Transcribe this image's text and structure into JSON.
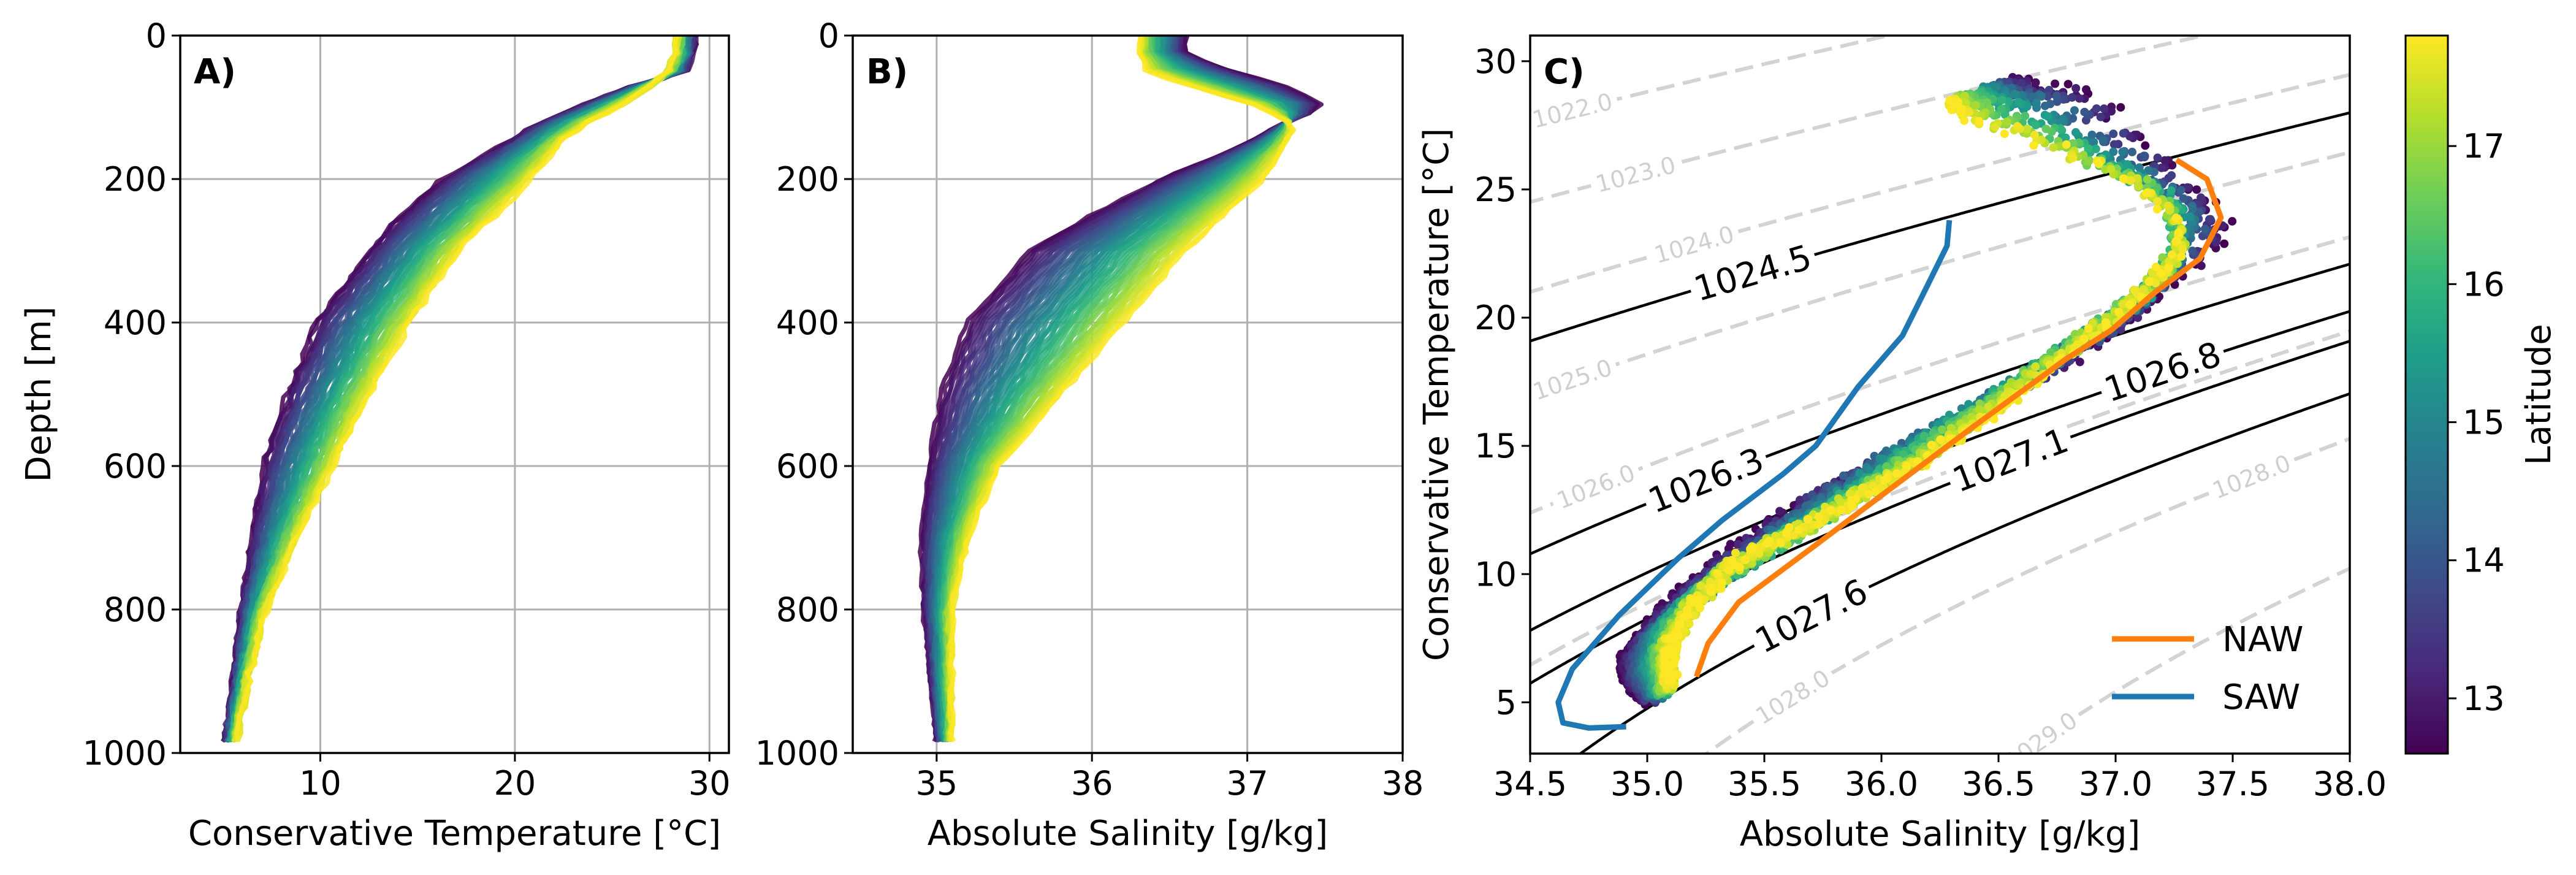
{
  "colors": {
    "viridis": [
      "#440154",
      "#482878",
      "#3e4989",
      "#31688e",
      "#26828e",
      "#1f9e89",
      "#35b779",
      "#6ece58",
      "#b5de2b",
      "#fde725"
    ],
    "NAW": "#ff7f0e",
    "SAW": "#1f77b4",
    "grid": "#b0b0b0",
    "isopycnal_major": "#000000",
    "isopycnal_minor": "#d3d3d3"
  },
  "chart_data": [
    {
      "panel_label": "A)",
      "type": "line",
      "xlabel": "Conservative Temperature [°C]",
      "ylabel": "Depth [m]",
      "xlim": [
        2.8,
        31
      ],
      "ylim": [
        1000,
        0
      ],
      "xticks": [
        "10",
        "20",
        "30"
      ],
      "yticks": [
        "0",
        "200",
        "400",
        "600",
        "800",
        "1000"
      ],
      "grid": true,
      "color_by": "latitude",
      "depth": [
        0,
        25,
        50,
        75,
        100,
        125,
        150,
        200,
        250,
        300,
        400,
        500,
        600,
        700,
        800,
        900,
        985
      ],
      "envelope": [
        {
          "latitude": 12.6,
          "values": [
            29.2,
            29.2,
            28.8,
            25.5,
            23.2,
            21.0,
            19.5,
            16.3,
            14.2,
            12.5,
            9.8,
            8.3,
            7.1,
            6.5,
            5.9,
            5.5,
            5.1
          ]
        },
        {
          "latitude": 17.8,
          "values": [
            28.3,
            28.2,
            27.8,
            26.8,
            25.3,
            23.5,
            22.3,
            20.8,
            19.0,
            17.1,
            14.6,
            12.5,
            10.7,
            8.8,
            7.2,
            6.3,
            5.7
          ]
        }
      ]
    },
    {
      "panel_label": "B)",
      "type": "line",
      "xlabel": "Absolute Salinity [g/kg]",
      "xlim": [
        34.46,
        38
      ],
      "ylim": [
        1000,
        0
      ],
      "xticks": [
        "35",
        "36",
        "37",
        "38"
      ],
      "yticks": [
        "0",
        "200",
        "400",
        "600",
        "800",
        "1000"
      ],
      "grid": true,
      "color_by": "latitude",
      "depth": [
        0,
        25,
        50,
        75,
        100,
        125,
        150,
        200,
        250,
        300,
        400,
        500,
        600,
        700,
        800,
        900,
        985
      ],
      "envelope": [
        {
          "latitude": 12.6,
          "values": [
            36.6,
            36.6,
            36.9,
            37.3,
            37.5,
            37.2,
            37.0,
            36.45,
            36.0,
            35.6,
            35.2,
            35.03,
            34.95,
            34.9,
            34.92,
            34.96,
            35.0
          ]
        },
        {
          "latitude": 17.8,
          "values": [
            36.3,
            36.3,
            36.35,
            36.7,
            37.1,
            37.3,
            37.25,
            37.1,
            36.85,
            36.6,
            36.2,
            35.8,
            35.4,
            35.2,
            35.1,
            35.1,
            35.1
          ]
        }
      ]
    },
    {
      "panel_label": "C)",
      "type": "scatter",
      "xlabel": "Absolute Salinity [g/kg]",
      "ylabel": "Conservative Temperature [°C]",
      "xlim": [
        34.5,
        38.0
      ],
      "ylim": [
        3,
        31
      ],
      "xticks": [
        "34.5",
        "35.0",
        "35.5",
        "36.0",
        "36.5",
        "37.0",
        "37.5",
        "38.0"
      ],
      "yticks": [
        "5",
        "10",
        "15",
        "20",
        "25",
        "30"
      ],
      "grid": false,
      "legend": {
        "position": "bottom-right",
        "entries": [
          "NAW",
          "SAW"
        ]
      },
      "series": [
        {
          "name": "NAW",
          "type": "line",
          "points": [
            [
              37.26,
              26.15
            ],
            [
              37.39,
              25.4
            ],
            [
              37.45,
              23.9
            ],
            [
              37.36,
              22.3
            ],
            [
              37.17,
              21.0
            ],
            [
              36.98,
              19.5
            ],
            [
              36.79,
              18.4
            ],
            [
              36.4,
              15.8
            ],
            [
              36.02,
              13.2
            ],
            [
              35.7,
              11.0
            ],
            [
              35.39,
              8.9
            ],
            [
              35.26,
              7.3
            ],
            [
              35.21,
              6.0
            ]
          ]
        },
        {
          "name": "SAW",
          "type": "line",
          "points": [
            [
              36.29,
              23.8
            ],
            [
              36.28,
              22.8
            ],
            [
              36.21,
              21.5
            ],
            [
              36.09,
              19.3
            ],
            [
              35.9,
              17.3
            ],
            [
              35.72,
              15.0
            ],
            [
              35.58,
              13.9
            ],
            [
              35.32,
              12.1
            ],
            [
              35.13,
              10.6
            ],
            [
              34.88,
              8.4
            ],
            [
              34.68,
              6.3
            ],
            [
              34.62,
              5.0
            ],
            [
              34.64,
              4.2
            ],
            [
              34.75,
              4.0
            ],
            [
              34.91,
              4.05
            ]
          ]
        }
      ],
      "isopycnals_labeled": [
        {
          "level": 1024.5,
          "label": "1024.5",
          "label_at_salinity": 35.45
        },
        {
          "level": 1026.3,
          "label": "1026.3",
          "label_at_salinity": 35.25
        },
        {
          "level": 1026.8,
          "label": "1026.8",
          "label_at_salinity": 37.2
        },
        {
          "level": 1027.1,
          "label": "1027.1",
          "label_at_salinity": 36.55
        },
        {
          "level": 1027.6,
          "label": "1027.6",
          "label_at_salinity": 35.7
        }
      ],
      "isopycnals_dashed": [
        {
          "level": 1022.0,
          "labels": [
            {
              "text": "1022.0",
              "at_salinity": 34.68
            }
          ]
        },
        {
          "level": 1023.0,
          "labels": [
            {
              "text": "1023.0",
              "at_salinity": 34.95
            }
          ]
        },
        {
          "level": 1024.0,
          "labels": [
            {
              "text": "1024.0",
              "at_salinity": 35.2
            }
          ]
        },
        {
          "level": 1025.0,
          "labels": [
            {
              "text": "1025.0",
              "at_salinity": 34.68
            }
          ]
        },
        {
          "level": 1026.0,
          "labels": [
            {
              "text": "1026.0",
              "at_salinity": 34.78
            }
          ]
        },
        {
          "level": 1027.0,
          "labels": []
        },
        {
          "level": 1028.0,
          "labels": [
            {
              "text": "1028.0",
              "at_salinity": 35.62
            },
            {
              "text": "1028.0",
              "at_salinity": 37.58
            }
          ]
        },
        {
          "level": 1029.0,
          "labels": [
            {
              "text": "1029.0",
              "at_salinity": 36.68
            }
          ]
        }
      ],
      "colorbar": {
        "label": "Latitude",
        "range": [
          12.6,
          17.8
        ],
        "ticks": [
          "13",
          "14",
          "15",
          "16",
          "17"
        ]
      }
    }
  ]
}
